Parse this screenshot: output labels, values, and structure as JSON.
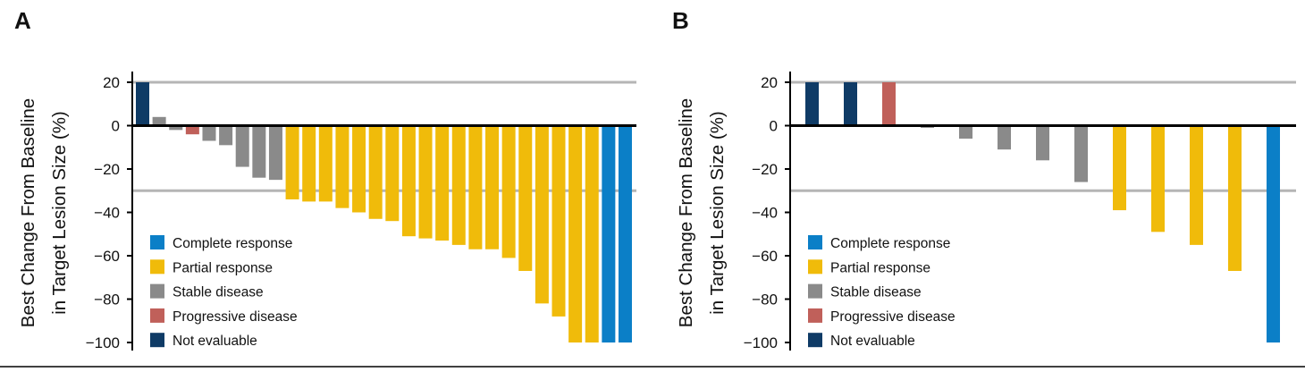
{
  "colors": {
    "complete_response": "#0b7fc7",
    "partial_response": "#f0bb0a",
    "stable_disease": "#8a8a8a",
    "progressive_disease": "#c0605a",
    "not_evaluable": "#0f3b66",
    "reference_line": "#b5b5b5",
    "axis": "#000000"
  },
  "chart_data": [
    {
      "panel": "A",
      "type": "bar",
      "ylabel_line1": "Best Change From Baseline",
      "ylabel_line2": "in Target Lesion Size (%)",
      "ylim": [
        -100,
        20
      ],
      "yticks": [
        "20",
        "0",
        "−20",
        "−40",
        "−60",
        "−80",
        "−100"
      ],
      "ytick_values": [
        20,
        0,
        -20,
        -40,
        -60,
        -80,
        -100
      ],
      "reference_lines": [
        20,
        -30
      ],
      "legend_position": "bottom-left",
      "legend": [
        {
          "key": "complete_response",
          "label": "Complete response"
        },
        {
          "key": "partial_response",
          "label": "Partial response"
        },
        {
          "key": "stable_disease",
          "label": "Stable disease"
        },
        {
          "key": "progressive_disease",
          "label": "Progressive disease"
        },
        {
          "key": "not_evaluable",
          "label": "Not evaluable"
        }
      ],
      "bars": [
        {
          "value": 20,
          "category": "not_evaluable"
        },
        {
          "value": 4,
          "category": "stable_disease"
        },
        {
          "value": -2,
          "category": "stable_disease"
        },
        {
          "value": -4,
          "category": "progressive_disease"
        },
        {
          "value": -7,
          "category": "stable_disease"
        },
        {
          "value": -9,
          "category": "stable_disease"
        },
        {
          "value": -19,
          "category": "stable_disease"
        },
        {
          "value": -24,
          "category": "stable_disease"
        },
        {
          "value": -25,
          "category": "stable_disease"
        },
        {
          "value": -34,
          "category": "partial_response"
        },
        {
          "value": -35,
          "category": "partial_response"
        },
        {
          "value": -35,
          "category": "partial_response"
        },
        {
          "value": -38,
          "category": "partial_response"
        },
        {
          "value": -40,
          "category": "partial_response"
        },
        {
          "value": -43,
          "category": "partial_response"
        },
        {
          "value": -44,
          "category": "partial_response"
        },
        {
          "value": -51,
          "category": "partial_response"
        },
        {
          "value": -52,
          "category": "partial_response"
        },
        {
          "value": -53,
          "category": "partial_response"
        },
        {
          "value": -55,
          "category": "partial_response"
        },
        {
          "value": -57,
          "category": "partial_response"
        },
        {
          "value": -57,
          "category": "partial_response"
        },
        {
          "value": -61,
          "category": "partial_response"
        },
        {
          "value": -67,
          "category": "partial_response"
        },
        {
          "value": -82,
          "category": "partial_response"
        },
        {
          "value": -88,
          "category": "partial_response"
        },
        {
          "value": -100,
          "category": "partial_response"
        },
        {
          "value": -100,
          "category": "partial_response"
        },
        {
          "value": -100,
          "category": "complete_response"
        },
        {
          "value": -100,
          "category": "complete_response"
        }
      ]
    },
    {
      "panel": "B",
      "type": "bar",
      "ylabel_line1": "Best Change From Baseline",
      "ylabel_line2": "in Target Lesion Size (%)",
      "ylim": [
        -100,
        20
      ],
      "yticks": [
        "20",
        "0",
        "−20",
        "−40",
        "−60",
        "−80",
        "−100"
      ],
      "ytick_values": [
        20,
        0,
        -20,
        -40,
        -60,
        -80,
        -100
      ],
      "reference_lines": [
        20,
        -30
      ],
      "legend_position": "bottom-left",
      "legend": [
        {
          "key": "complete_response",
          "label": "Complete response"
        },
        {
          "key": "partial_response",
          "label": "Partial response"
        },
        {
          "key": "stable_disease",
          "label": "Stable disease"
        },
        {
          "key": "progressive_disease",
          "label": "Progressive disease"
        },
        {
          "key": "not_evaluable",
          "label": "Not evaluable"
        }
      ],
      "bars": [
        {
          "value": 20,
          "category": "not_evaluable"
        },
        {
          "value": 20,
          "category": "not_evaluable"
        },
        {
          "value": 20,
          "category": "progressive_disease"
        },
        {
          "value": -1,
          "category": "stable_disease"
        },
        {
          "value": -6,
          "category": "stable_disease"
        },
        {
          "value": -11,
          "category": "stable_disease"
        },
        {
          "value": -16,
          "category": "stable_disease"
        },
        {
          "value": -26,
          "category": "stable_disease"
        },
        {
          "value": -39,
          "category": "partial_response"
        },
        {
          "value": -49,
          "category": "partial_response"
        },
        {
          "value": -55,
          "category": "partial_response"
        },
        {
          "value": -67,
          "category": "partial_response"
        },
        {
          "value": -100,
          "category": "complete_response"
        }
      ]
    }
  ]
}
